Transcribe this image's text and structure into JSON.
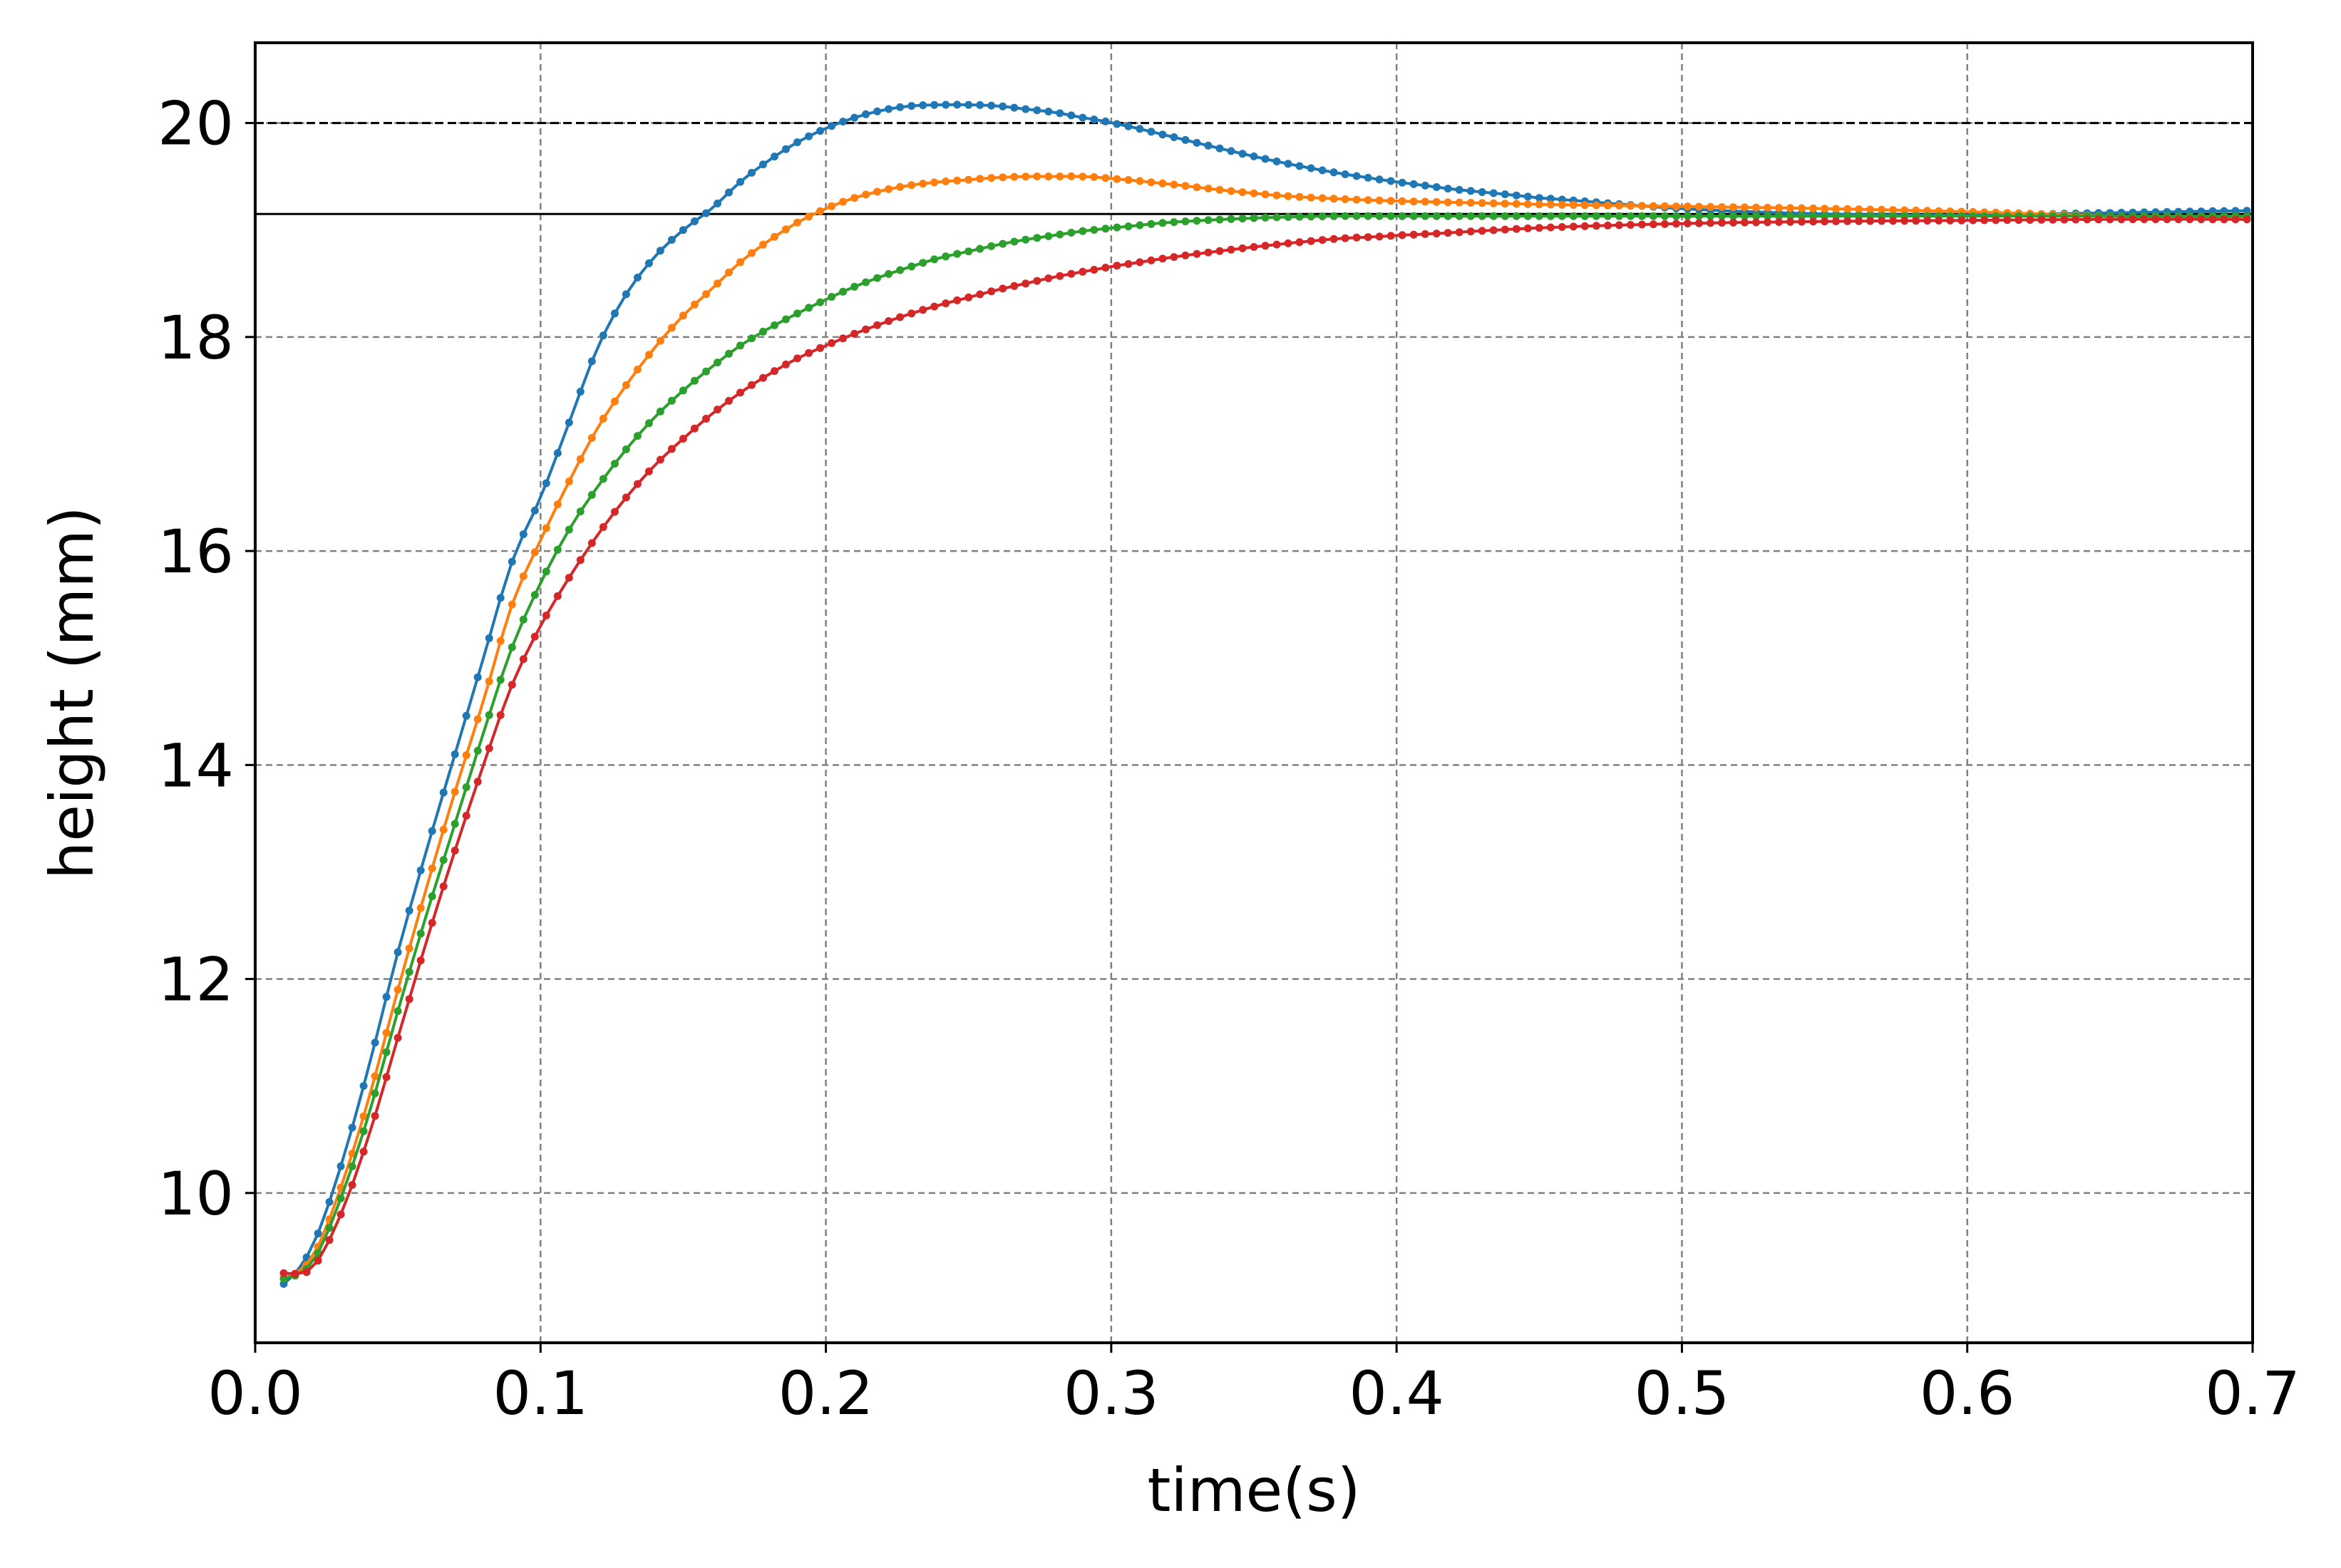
{
  "chart_data": {
    "type": "line",
    "title": "",
    "xlabel": "time(s)",
    "ylabel": "height (mm)",
    "xlim": [
      0.0,
      0.7
    ],
    "ylim": [
      8.6,
      20.75
    ],
    "x_ticks": [
      "0.0",
      "0.1",
      "0.2",
      "0.3",
      "0.4",
      "0.5",
      "0.6",
      "0.7"
    ],
    "y_ticks": [
      "10",
      "12",
      "14",
      "16",
      "18",
      "20"
    ],
    "grid": true,
    "legend": "none",
    "reference_lines": [
      {
        "y": 20.0,
        "style": "dashed",
        "color": "#000000"
      },
      {
        "y": 19.15,
        "style": "solid",
        "color": "#000000"
      }
    ],
    "marker_step_s": 0.004,
    "series": [
      {
        "color": "#1f77b4",
        "x": [
          0.01,
          0.02,
          0.03,
          0.04,
          0.05,
          0.06,
          0.07,
          0.08,
          0.09,
          0.1,
          0.11,
          0.12,
          0.13,
          0.14,
          0.15,
          0.16,
          0.17,
          0.18,
          0.19,
          0.2,
          0.21,
          0.22,
          0.23,
          0.24,
          0.25,
          0.26,
          0.27,
          0.28,
          0.29,
          0.3,
          0.32,
          0.34,
          0.36,
          0.38,
          0.4,
          0.42,
          0.45,
          0.5,
          0.55,
          0.6,
          0.65,
          0.7
        ],
        "y": [
          9.15,
          9.5,
          10.25,
          11.2,
          12.25,
          13.2,
          14.1,
          15.0,
          15.9,
          16.5,
          17.2,
          17.9,
          18.4,
          18.75,
          19.0,
          19.2,
          19.45,
          19.65,
          19.82,
          19.95,
          20.05,
          20.12,
          20.16,
          20.17,
          20.17,
          20.16,
          20.13,
          20.1,
          20.05,
          20.0,
          19.88,
          19.75,
          19.63,
          19.53,
          19.45,
          19.38,
          19.3,
          19.2,
          19.15,
          19.14,
          19.16,
          19.18
        ]
      },
      {
        "color": "#ff7f0e",
        "x": [
          0.01,
          0.02,
          0.03,
          0.04,
          0.05,
          0.06,
          0.07,
          0.08,
          0.09,
          0.1,
          0.11,
          0.12,
          0.13,
          0.14,
          0.15,
          0.16,
          0.17,
          0.18,
          0.19,
          0.2,
          0.21,
          0.22,
          0.23,
          0.24,
          0.25,
          0.26,
          0.27,
          0.28,
          0.29,
          0.3,
          0.32,
          0.34,
          0.36,
          0.38,
          0.4,
          0.45,
          0.5,
          0.55,
          0.6,
          0.65,
          0.7
        ],
        "y": [
          9.2,
          9.4,
          10.05,
          10.9,
          11.9,
          12.85,
          13.75,
          14.6,
          15.5,
          16.1,
          16.65,
          17.15,
          17.55,
          17.9,
          18.2,
          18.45,
          18.7,
          18.9,
          19.07,
          19.2,
          19.3,
          19.37,
          19.42,
          19.45,
          19.47,
          19.49,
          19.5,
          19.5,
          19.5,
          19.48,
          19.43,
          19.37,
          19.32,
          19.29,
          19.27,
          19.24,
          19.22,
          19.2,
          19.17,
          19.13,
          19.1
        ]
      },
      {
        "color": "#2ca02c",
        "x": [
          0.01,
          0.02,
          0.03,
          0.04,
          0.05,
          0.06,
          0.07,
          0.08,
          0.09,
          0.1,
          0.11,
          0.12,
          0.13,
          0.14,
          0.15,
          0.16,
          0.17,
          0.18,
          0.19,
          0.2,
          0.21,
          0.22,
          0.23,
          0.24,
          0.25,
          0.26,
          0.27,
          0.28,
          0.29,
          0.3,
          0.32,
          0.34,
          0.36,
          0.38,
          0.4,
          0.45,
          0.5,
          0.55,
          0.6,
          0.65,
          0.7
        ],
        "y": [
          9.2,
          9.35,
          9.95,
          10.75,
          11.7,
          12.6,
          13.45,
          14.3,
          15.1,
          15.7,
          16.2,
          16.6,
          16.95,
          17.25,
          17.5,
          17.72,
          17.92,
          18.08,
          18.22,
          18.35,
          18.47,
          18.57,
          18.66,
          18.74,
          18.8,
          18.86,
          18.91,
          18.95,
          18.99,
          19.02,
          19.07,
          19.1,
          19.12,
          19.13,
          19.13,
          19.13,
          19.13,
          19.13,
          19.13,
          19.13,
          19.13
        ]
      },
      {
        "color": "#d62728",
        "x": [
          0.01,
          0.02,
          0.03,
          0.04,
          0.05,
          0.06,
          0.07,
          0.08,
          0.09,
          0.1,
          0.11,
          0.12,
          0.13,
          0.14,
          0.15,
          0.16,
          0.17,
          0.18,
          0.19,
          0.2,
          0.21,
          0.22,
          0.23,
          0.24,
          0.25,
          0.26,
          0.27,
          0.28,
          0.29,
          0.3,
          0.32,
          0.34,
          0.36,
          0.38,
          0.4,
          0.45,
          0.5,
          0.55,
          0.6,
          0.65,
          0.7
        ],
        "y": [
          9.25,
          9.3,
          9.8,
          10.55,
          11.45,
          12.35,
          13.2,
          14.0,
          14.75,
          15.3,
          15.75,
          16.15,
          16.5,
          16.8,
          17.05,
          17.28,
          17.48,
          17.65,
          17.8,
          17.92,
          18.03,
          18.13,
          18.22,
          18.3,
          18.37,
          18.44,
          18.5,
          18.56,
          18.61,
          18.66,
          18.74,
          18.81,
          18.87,
          18.92,
          18.95,
          19.02,
          19.06,
          19.08,
          19.09,
          19.1,
          19.1
        ]
      }
    ]
  }
}
